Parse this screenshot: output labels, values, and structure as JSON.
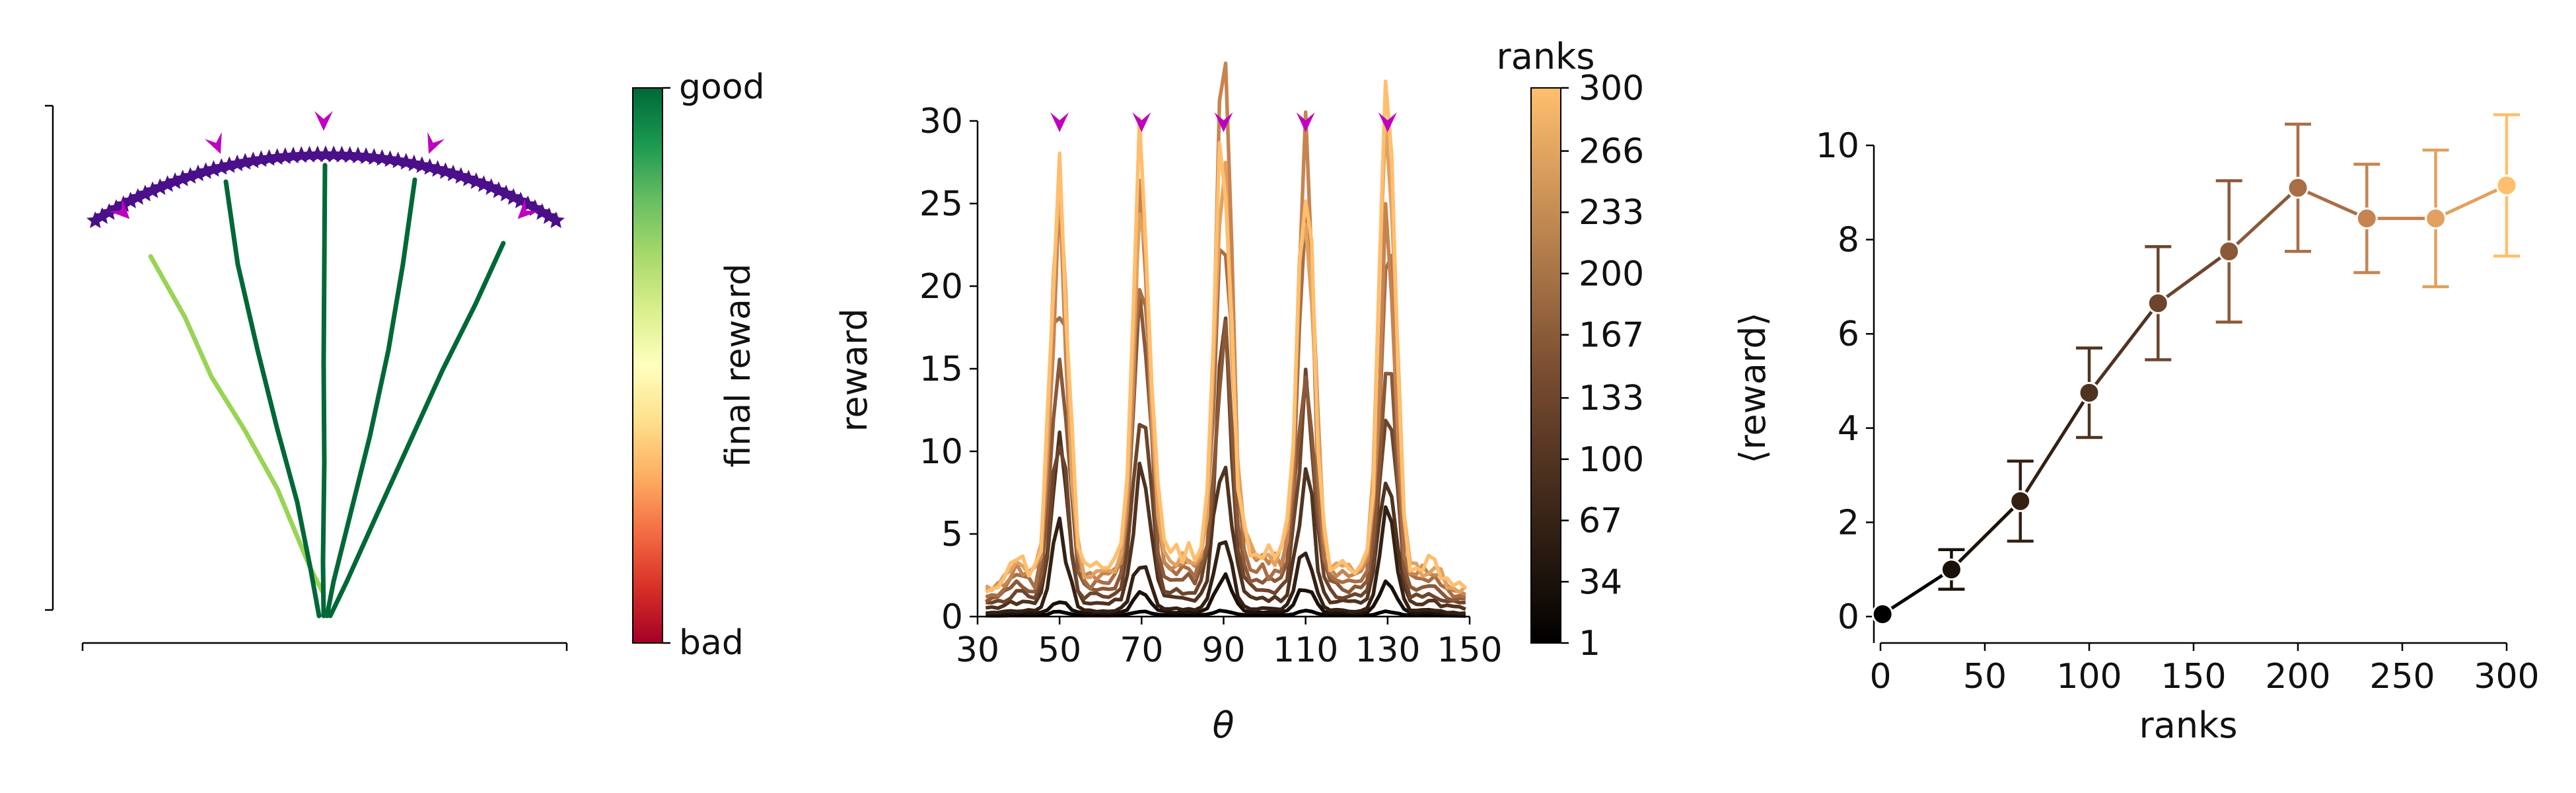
{
  "colors": {
    "arc": "#4b0f8a",
    "target": "#c000c0",
    "good": "#006837",
    "light_green": "#99d455",
    "axis": "#000000",
    "rank_low": "#000000",
    "rank_high": "#ffbf6e"
  },
  "panel_a": {
    "colorbar_top_label": "good",
    "colorbar_bottom_label": "bad",
    "colorbar_title": "final reward",
    "colormap": [
      "#a50026",
      "#d73027",
      "#f46d43",
      "#fdae61",
      "#fee08b",
      "#ffffbf",
      "#d9ef8b",
      "#a6d96a",
      "#66bd63",
      "#1a9850",
      "#006837"
    ]
  },
  "chart_data": [
    {
      "type": "line",
      "xlabel": "θ",
      "ylabel": "reward",
      "xlim": [
        30,
        150
      ],
      "ylim": [
        0,
        30
      ],
      "xticks": [
        30,
        50,
        70,
        90,
        110,
        130,
        150
      ],
      "yticks": [
        0,
        5,
        10,
        15,
        20,
        25,
        30
      ],
      "target_markers_x": [
        50,
        70,
        90,
        110,
        130
      ],
      "colorbar": {
        "title": "ranks",
        "ticks": [
          1,
          34,
          67,
          100,
          133,
          167,
          200,
          233,
          266,
          300
        ]
      },
      "series": [
        {
          "rank": 1,
          "peaks": [
            0.25,
            0.25,
            0.25,
            0.25,
            0.25
          ],
          "base": 0.1
        },
        {
          "rank": 34,
          "peaks": [
            0.8,
            1.2,
            2.0,
            1.6,
            1.8
          ],
          "base": 0.3
        },
        {
          "rank": 67,
          "peaks": [
            4.8,
            3.0,
            4.0,
            3.6,
            5.6
          ],
          "base": 0.5
        },
        {
          "rank": 100,
          "peaks": [
            9.5,
            8.0,
            9.0,
            7.5,
            9.0
          ],
          "base": 1.2
        },
        {
          "rank": 133,
          "peaks": [
            9.0,
            12.0,
            14.5,
            11.5,
            12.5
          ],
          "base": 1.8
        },
        {
          "rank": 167,
          "peaks": [
            15.0,
            17.0,
            15.5,
            14.0,
            14.5
          ],
          "base": 2.5
        },
        {
          "rank": 200,
          "peaks": [
            19.0,
            20.5,
            22.0,
            22.0,
            20.0
          ],
          "base": 3.0
        },
        {
          "rank": 233,
          "peaks": [
            20.5,
            22.5,
            26.7,
            24.6,
            22.5
          ],
          "base": 3.8
        },
        {
          "rank": 266,
          "peaks": [
            22.0,
            25.0,
            24.0,
            24.6,
            26.0
          ],
          "base": 4.0
        },
        {
          "rank": 300,
          "peaks": [
            25.6,
            25.8,
            25.0,
            23.0,
            27.0
          ],
          "base": 4.2
        }
      ]
    },
    {
      "type": "line",
      "xlabel": "ranks",
      "ylabel": "⟨reward⟩",
      "xlim": [
        0,
        300
      ],
      "ylim": [
        0,
        10
      ],
      "xticks": [
        0,
        50,
        100,
        150,
        200,
        250,
        300
      ],
      "yticks": [
        0,
        2,
        4,
        6,
        8,
        10
      ],
      "x": [
        1,
        34,
        67,
        100,
        133,
        167,
        200,
        233,
        266,
        300
      ],
      "y": [
        0.05,
        1.0,
        2.45,
        4.75,
        6.65,
        7.75,
        9.1,
        8.45,
        8.45,
        9.15
      ],
      "err": [
        0.0,
        0.42,
        0.85,
        0.95,
        1.2,
        1.5,
        1.35,
        1.15,
        1.45,
        1.5
      ]
    }
  ]
}
